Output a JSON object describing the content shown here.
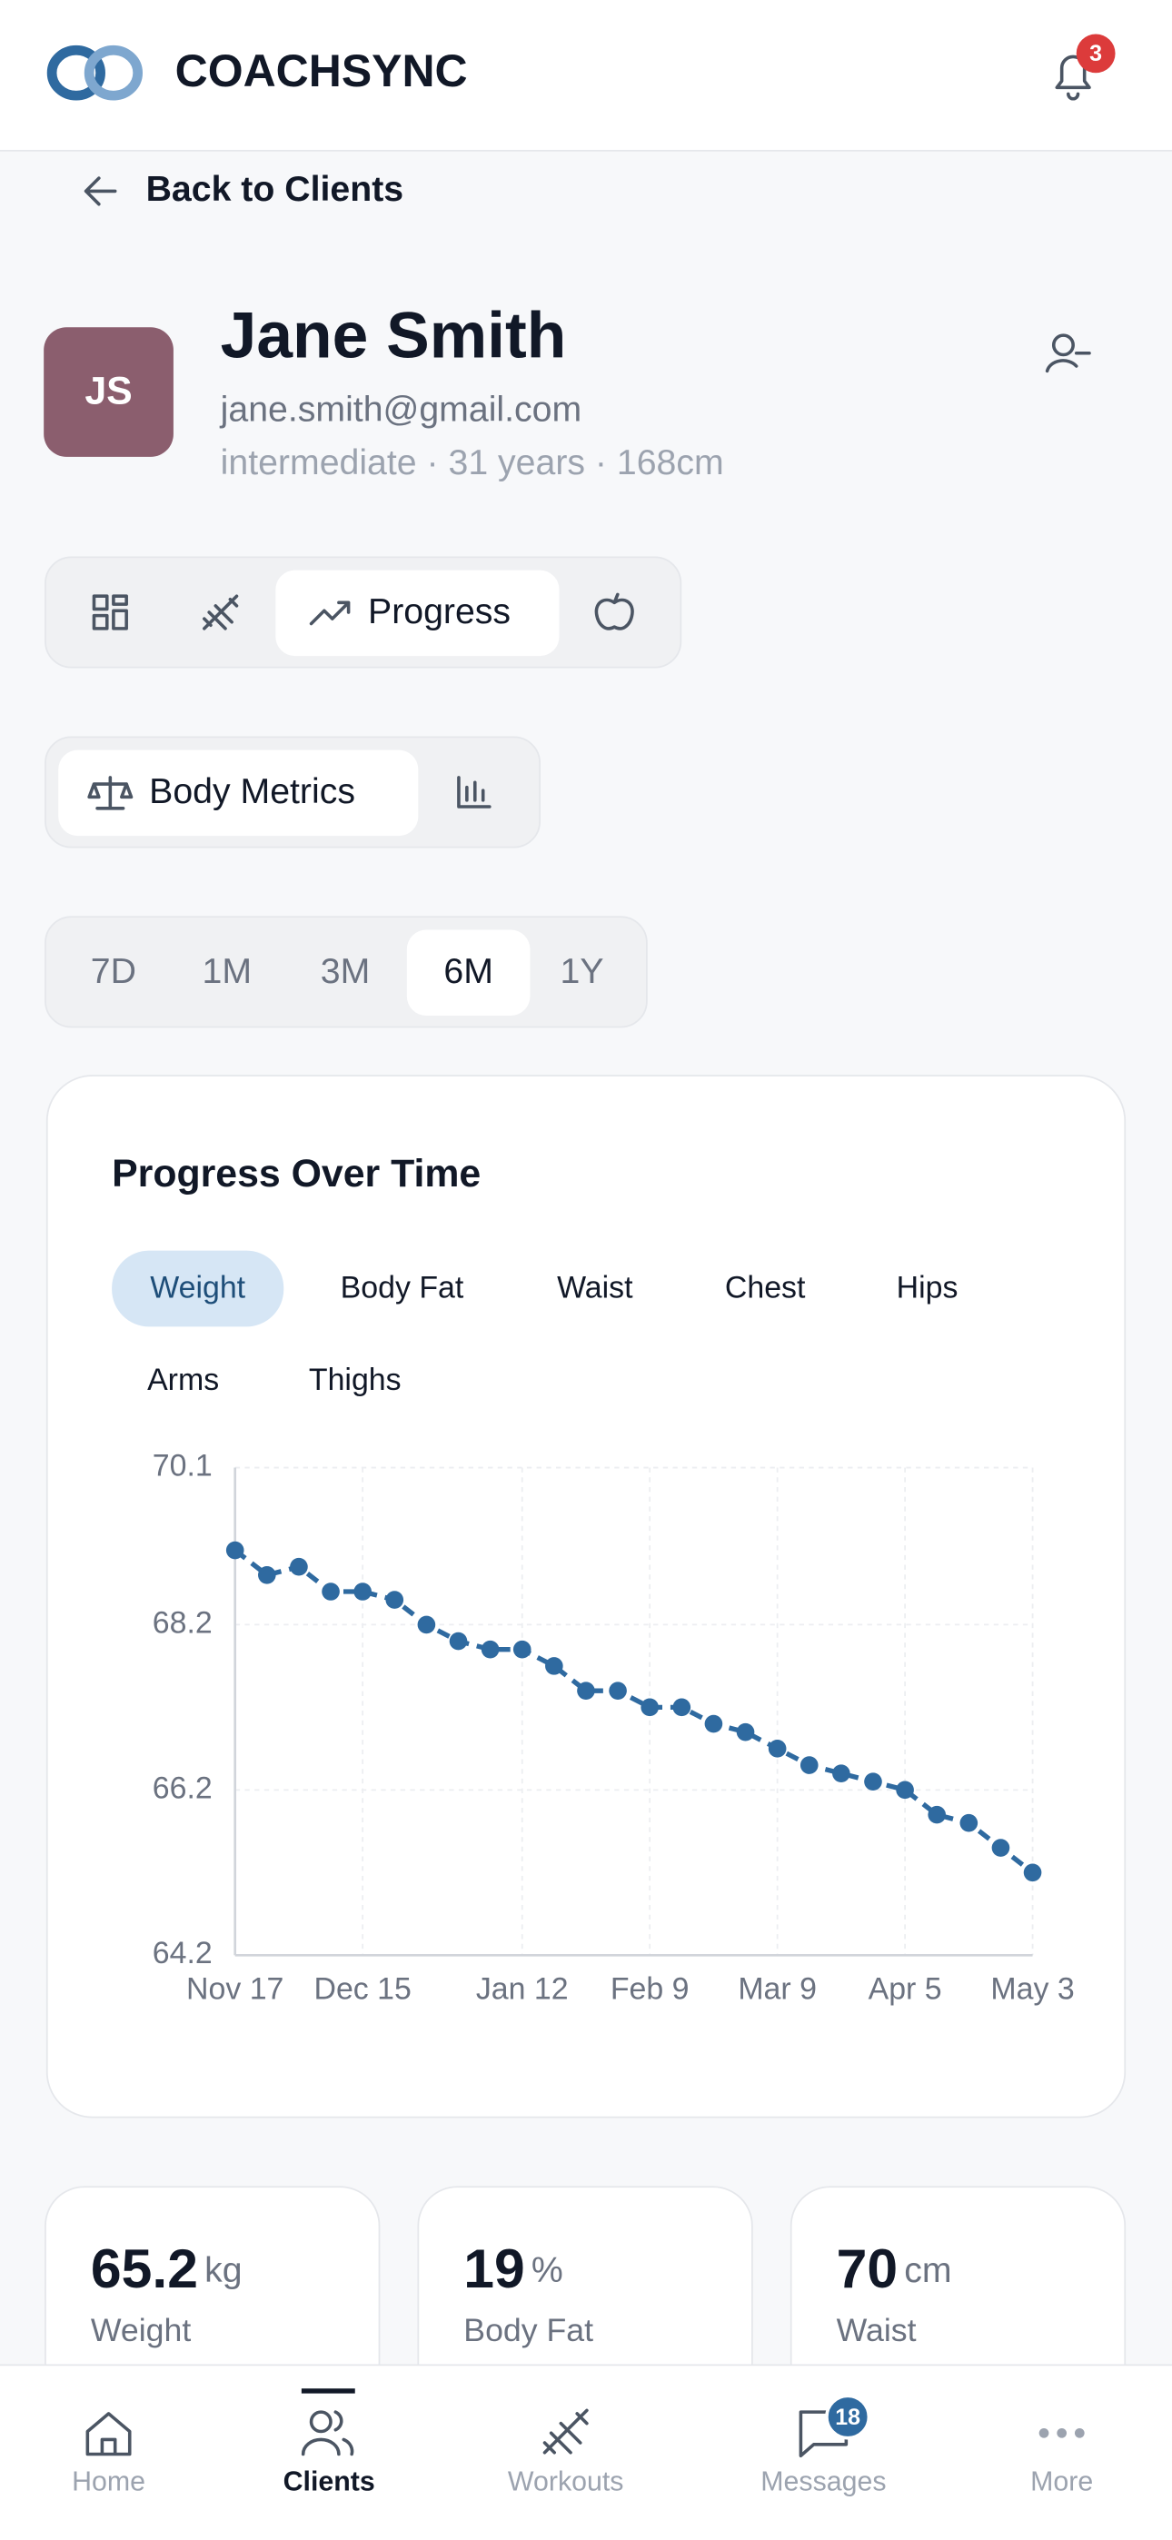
{
  "header": {
    "brand": "COACHSYNC",
    "notification_count": 3
  },
  "back_link": "Back to Clients",
  "client": {
    "initials": "JS",
    "name": "Jane Smith",
    "email": "jane.smith@gmail.com",
    "details": "intermediate · 31 years · 168cm"
  },
  "tabs": {
    "active": "Progress"
  },
  "sub_tabs": {
    "active": "Body Metrics"
  },
  "ranges": [
    "7D",
    "1M",
    "3M",
    "6M",
    "1Y"
  ],
  "chart_data": {
    "type": "line",
    "title": "Progress Over Time",
    "metrics": [
      "Weight",
      "Body Fat",
      "Waist",
      "Chest",
      "Hips",
      "Arms",
      "Thighs"
    ],
    "categories": [
      "Nov 17",
      null,
      null,
      null,
      "Dec 15",
      null,
      null,
      null,
      null,
      "Jan 12",
      null,
      null,
      null,
      "Feb 9",
      null,
      null,
      null,
      "Mar 9",
      null,
      null,
      null,
      "Apr 5",
      null,
      null,
      null,
      "May 3"
    ],
    "values": [
      69.1,
      68.8,
      68.9,
      68.6,
      68.6,
      68.5,
      68.2,
      68.0,
      67.9,
      67.9,
      67.7,
      67.4,
      67.4,
      67.2,
      67.2,
      67.0,
      66.9,
      66.7,
      66.5,
      66.4,
      66.3,
      66.2,
      65.9,
      65.8,
      65.5,
      65.2
    ],
    "color": "#2f6aa0",
    "ylim": [
      64.2,
      70.1
    ],
    "yticks": [
      64.2,
      66.2,
      68.2,
      70.1
    ],
    "grid": true
  },
  "stats": [
    {
      "value": 65.2,
      "unit": "kg",
      "label": "Weight"
    },
    {
      "value": 19,
      "unit": "%",
      "label": "Body Fat"
    },
    {
      "value": 70,
      "unit": "cm",
      "label": "Waist"
    }
  ],
  "nav": [
    "Home",
    "Clients",
    "Workouts",
    "Messages",
    "More"
  ],
  "messages_badge": 18
}
